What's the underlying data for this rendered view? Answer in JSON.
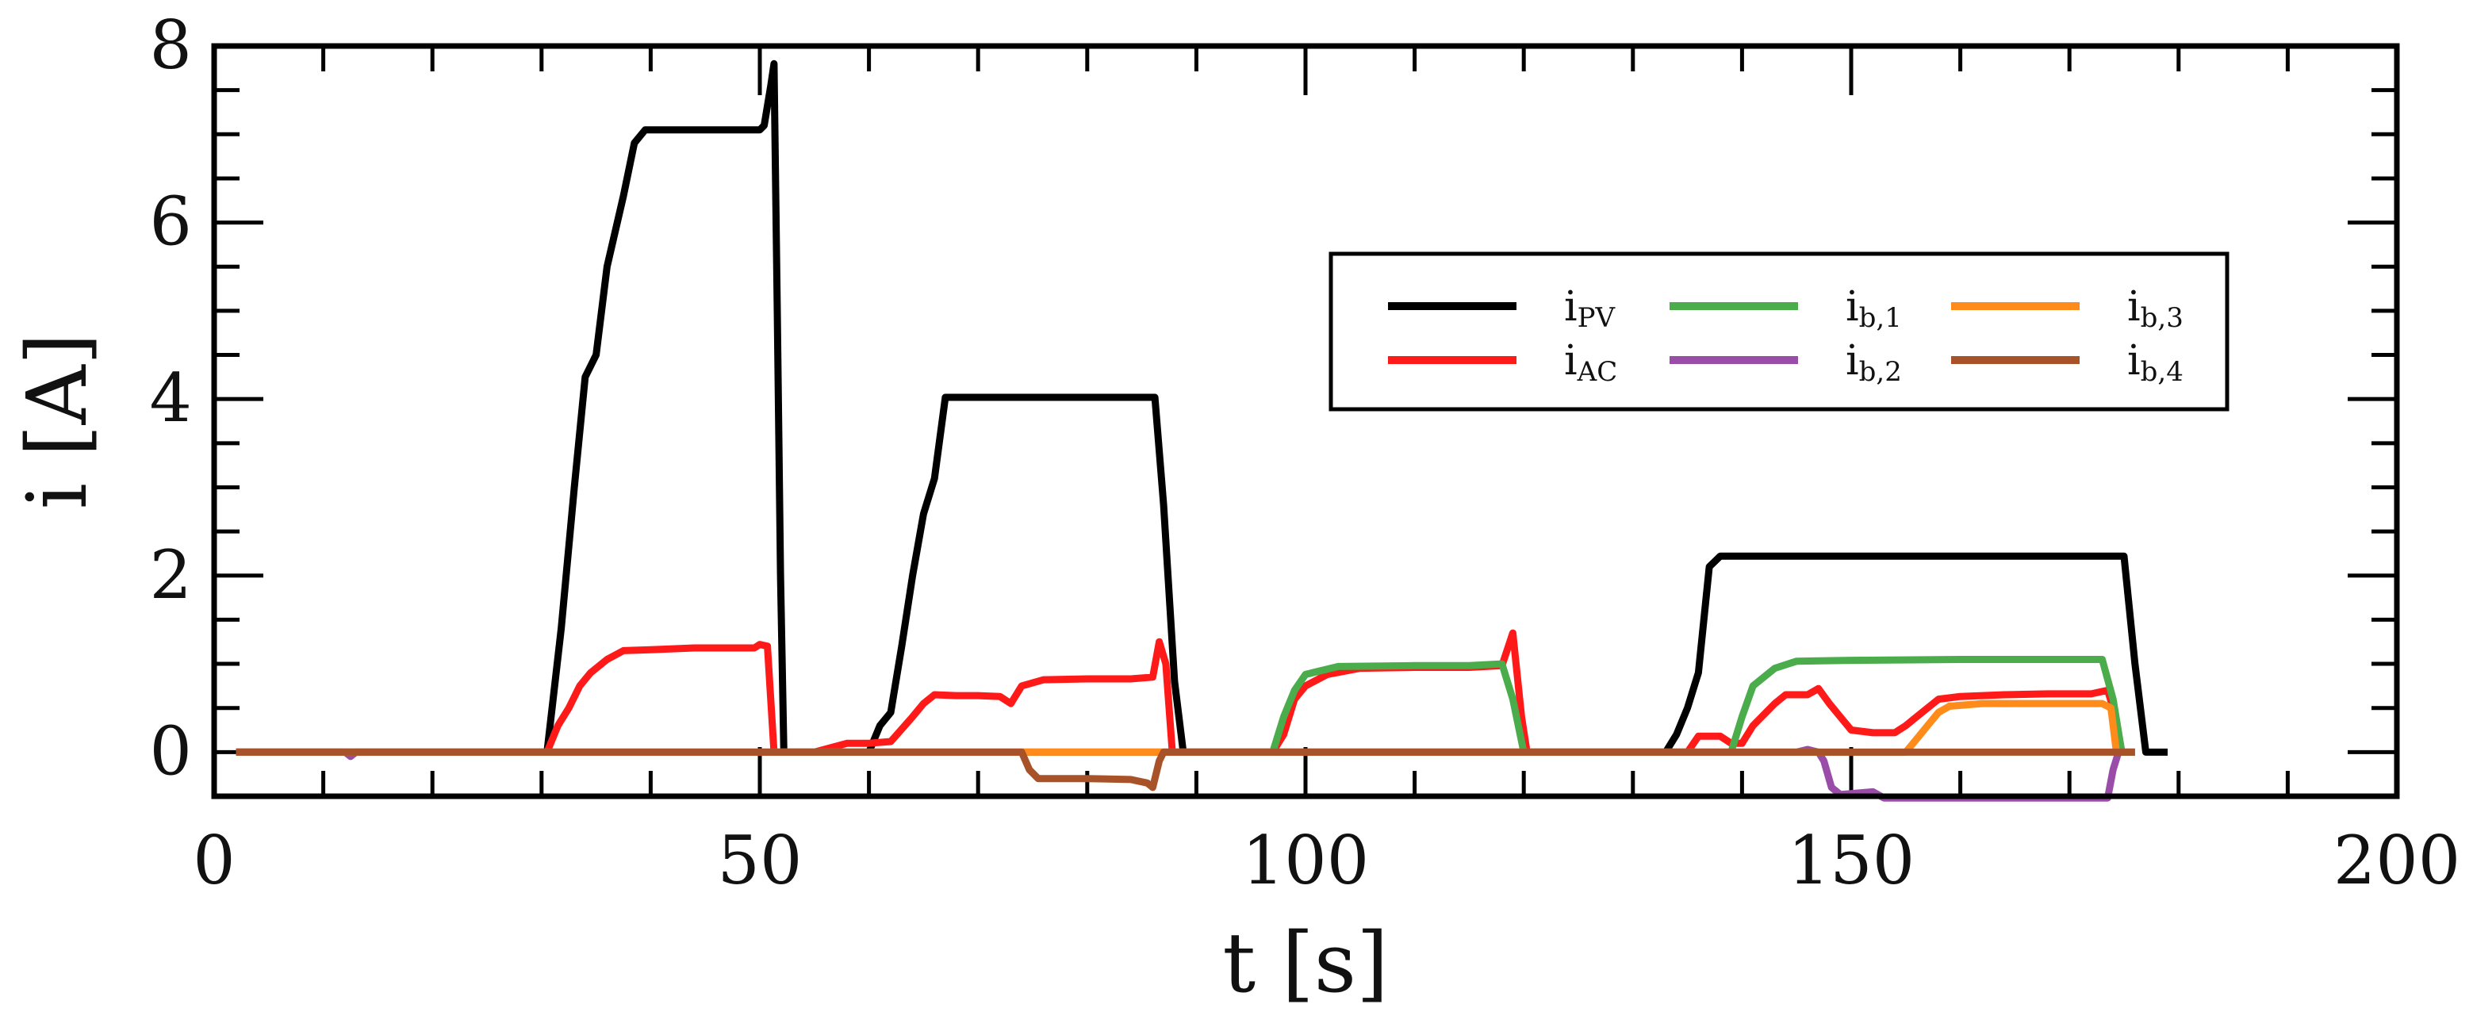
{
  "chart_data": {
    "type": "line",
    "xlabel": "t [s]",
    "ylabel": "i [A]",
    "xlim": [
      0,
      200
    ],
    "ylim": [
      -0.5,
      8
    ],
    "xticks": [
      0,
      50,
      100,
      150,
      200
    ],
    "xtick_labels": [
      "0",
      "50",
      "100",
      "150",
      "200"
    ],
    "yticks": [
      0,
      2,
      4,
      6,
      8
    ],
    "ytick_labels": [
      "0",
      "2",
      "4",
      "6",
      "8"
    ],
    "grid": false,
    "legend_position": "upper-right",
    "series": [
      {
        "id": "ipv",
        "name_main": "i",
        "name_sub": "PV",
        "color": "#000000",
        "points": [
          [
            2,
            0
          ],
          [
            30.5,
            0
          ],
          [
            31.8,
            1.4
          ],
          [
            33,
            3
          ],
          [
            34,
            4.25
          ],
          [
            35,
            4.5
          ],
          [
            36,
            5.5
          ],
          [
            37.5,
            6.3
          ],
          [
            38.5,
            6.9
          ],
          [
            39.5,
            7.05
          ],
          [
            45,
            7.05
          ],
          [
            50,
            7.05
          ],
          [
            50.4,
            7.1
          ],
          [
            51,
            7.55
          ],
          [
            51.3,
            7.8
          ],
          [
            51.6,
            5
          ],
          [
            51.9,
            2
          ],
          [
            52.2,
            0
          ],
          [
            60,
            0
          ],
          [
            61,
            0.3
          ],
          [
            62,
            0.45
          ],
          [
            63,
            1.2
          ],
          [
            64,
            2
          ],
          [
            65,
            2.7
          ],
          [
            66,
            3.1
          ],
          [
            67,
            4.02
          ],
          [
            75,
            4.02
          ],
          [
            85,
            4.02
          ],
          [
            86.2,
            4.02
          ],
          [
            87,
            2.8
          ],
          [
            88,
            0.8
          ],
          [
            88.8,
            0
          ],
          [
            100,
            0
          ],
          [
            120,
            0
          ],
          [
            133,
            0
          ],
          [
            134,
            0.2
          ],
          [
            135,
            0.5
          ],
          [
            136,
            0.9
          ],
          [
            137,
            2.1
          ],
          [
            138,
            2.22
          ],
          [
            150,
            2.22
          ],
          [
            175,
            2.22
          ],
          [
            176,
            1
          ],
          [
            177,
            0
          ],
          [
            179,
            0
          ]
        ]
      },
      {
        "id": "iac",
        "name_main": "i",
        "name_sub": "AC",
        "color": "#ff1a1a",
        "points": [
          [
            2,
            0
          ],
          [
            10,
            0
          ],
          [
            20,
            0
          ],
          [
            30.5,
            0
          ],
          [
            31.5,
            0.3
          ],
          [
            32.5,
            0.5
          ],
          [
            33.5,
            0.75
          ],
          [
            34.5,
            0.9
          ],
          [
            36,
            1.05
          ],
          [
            37.5,
            1.15
          ],
          [
            40,
            1.16
          ],
          [
            44,
            1.18
          ],
          [
            48,
            1.18
          ],
          [
            49.5,
            1.18
          ],
          [
            50,
            1.22
          ],
          [
            50.7,
            1.2
          ],
          [
            51.3,
            0
          ],
          [
            55,
            0
          ],
          [
            58,
            0.1
          ],
          [
            60,
            0.1
          ],
          [
            62,
            0.12
          ],
          [
            64,
            0.4
          ],
          [
            65,
            0.55
          ],
          [
            66,
            0.65
          ],
          [
            68,
            0.64
          ],
          [
            70,
            0.64
          ],
          [
            72,
            0.63
          ],
          [
            73,
            0.55
          ],
          [
            74,
            0.75
          ],
          [
            76,
            0.82
          ],
          [
            80,
            0.83
          ],
          [
            84,
            0.83
          ],
          [
            86,
            0.85
          ],
          [
            86.6,
            1.25
          ],
          [
            87.2,
            1.0
          ],
          [
            87.8,
            0
          ],
          [
            97,
            0
          ],
          [
            98,
            0.2
          ],
          [
            99,
            0.6
          ],
          [
            100,
            0.75
          ],
          [
            102,
            0.88
          ],
          [
            105,
            0.95
          ],
          [
            110,
            0.96
          ],
          [
            115,
            0.96
          ],
          [
            118,
            0.98
          ],
          [
            119,
            1.35
          ],
          [
            119.8,
            0.4
          ],
          [
            120.3,
            0
          ],
          [
            130,
            0
          ],
          [
            135,
            0
          ],
          [
            136,
            0.18
          ],
          [
            138,
            0.18
          ],
          [
            139,
            0.1
          ],
          [
            140,
            0.1
          ],
          [
            141,
            0.3
          ],
          [
            143,
            0.55
          ],
          [
            144,
            0.65
          ],
          [
            146,
            0.65
          ],
          [
            147,
            0.72
          ],
          [
            148,
            0.55
          ],
          [
            149,
            0.4
          ],
          [
            150,
            0.25
          ],
          [
            152,
            0.22
          ],
          [
            154,
            0.22
          ],
          [
            155,
            0.3
          ],
          [
            156,
            0.4
          ],
          [
            158,
            0.6
          ],
          [
            160,
            0.63
          ],
          [
            164,
            0.65
          ],
          [
            168,
            0.66
          ],
          [
            172,
            0.66
          ],
          [
            173.5,
            0.7
          ],
          [
            174,
            0.5
          ],
          [
            174.8,
            0
          ],
          [
            176,
            0
          ]
        ]
      },
      {
        "id": "ib1",
        "name_main": "i",
        "name_sub": "b,1",
        "color": "#4aac4a",
        "points": [
          [
            2,
            0
          ],
          [
            30,
            0
          ],
          [
            50,
            0
          ],
          [
            60,
            0
          ],
          [
            88,
            0
          ],
          [
            97,
            0
          ],
          [
            98,
            0.4
          ],
          [
            99,
            0.7
          ],
          [
            100,
            0.88
          ],
          [
            103,
            0.97
          ],
          [
            110,
            0.98
          ],
          [
            115,
            0.98
          ],
          [
            118,
            1.0
          ],
          [
            119,
            0.6
          ],
          [
            120,
            0
          ],
          [
            130,
            0
          ],
          [
            139,
            0
          ],
          [
            140,
            0.4
          ],
          [
            141,
            0.75
          ],
          [
            143,
            0.95
          ],
          [
            145,
            1.03
          ],
          [
            150,
            1.04
          ],
          [
            160,
            1.05
          ],
          [
            170,
            1.05
          ],
          [
            173,
            1.05
          ],
          [
            174,
            0.6
          ],
          [
            174.8,
            0
          ],
          [
            176,
            0
          ]
        ]
      },
      {
        "id": "ib2",
        "name_main": "i",
        "name_sub": "b,2",
        "color": "#9a4da8",
        "points": [
          [
            2,
            0
          ],
          [
            12,
            0
          ],
          [
            12.5,
            -0.05
          ],
          [
            13,
            0
          ],
          [
            30,
            0
          ],
          [
            50,
            0
          ],
          [
            88,
            0
          ],
          [
            130,
            0
          ],
          [
            145,
            0
          ],
          [
            146,
            0.03
          ],
          [
            147,
            0
          ],
          [
            147.5,
            -0.1
          ],
          [
            148.2,
            -0.4
          ],
          [
            149,
            -0.48
          ],
          [
            152,
            -0.45
          ],
          [
            153,
            -0.52
          ],
          [
            160,
            -0.52
          ],
          [
            165,
            -0.52
          ],
          [
            172,
            -0.52
          ],
          [
            173.5,
            -0.52
          ],
          [
            174,
            -0.2
          ],
          [
            174.5,
            0
          ]
        ]
      },
      {
        "id": "ib3",
        "name_main": "i",
        "name_sub": "b,3",
        "color": "#ff8c1a",
        "points": [
          [
            2,
            0
          ],
          [
            100,
            0
          ],
          [
            138,
            0
          ],
          [
            150,
            0
          ],
          [
            155,
            0
          ],
          [
            156,
            0.15
          ],
          [
            157,
            0.3
          ],
          [
            158,
            0.45
          ],
          [
            159,
            0.52
          ],
          [
            162,
            0.55
          ],
          [
            166,
            0.55
          ],
          [
            170,
            0.55
          ],
          [
            173,
            0.55
          ],
          [
            173.8,
            0.5
          ],
          [
            174.3,
            0
          ]
        ]
      },
      {
        "id": "ib4",
        "name_main": "i",
        "name_sub": "b,4",
        "color": "#a8522a",
        "points": [
          [
            2,
            0
          ],
          [
            60,
            0
          ],
          [
            74,
            0
          ],
          [
            74.7,
            -0.2
          ],
          [
            75.5,
            -0.3
          ],
          [
            80,
            -0.3
          ],
          [
            84,
            -0.31
          ],
          [
            85.5,
            -0.35
          ],
          [
            86,
            -0.4
          ],
          [
            86.6,
            -0.1
          ],
          [
            87,
            0
          ],
          [
            100,
            0
          ],
          [
            150,
            0
          ],
          [
            160,
            0
          ],
          [
            170,
            0
          ],
          [
            174,
            0
          ],
          [
            176,
            0
          ]
        ]
      }
    ]
  }
}
